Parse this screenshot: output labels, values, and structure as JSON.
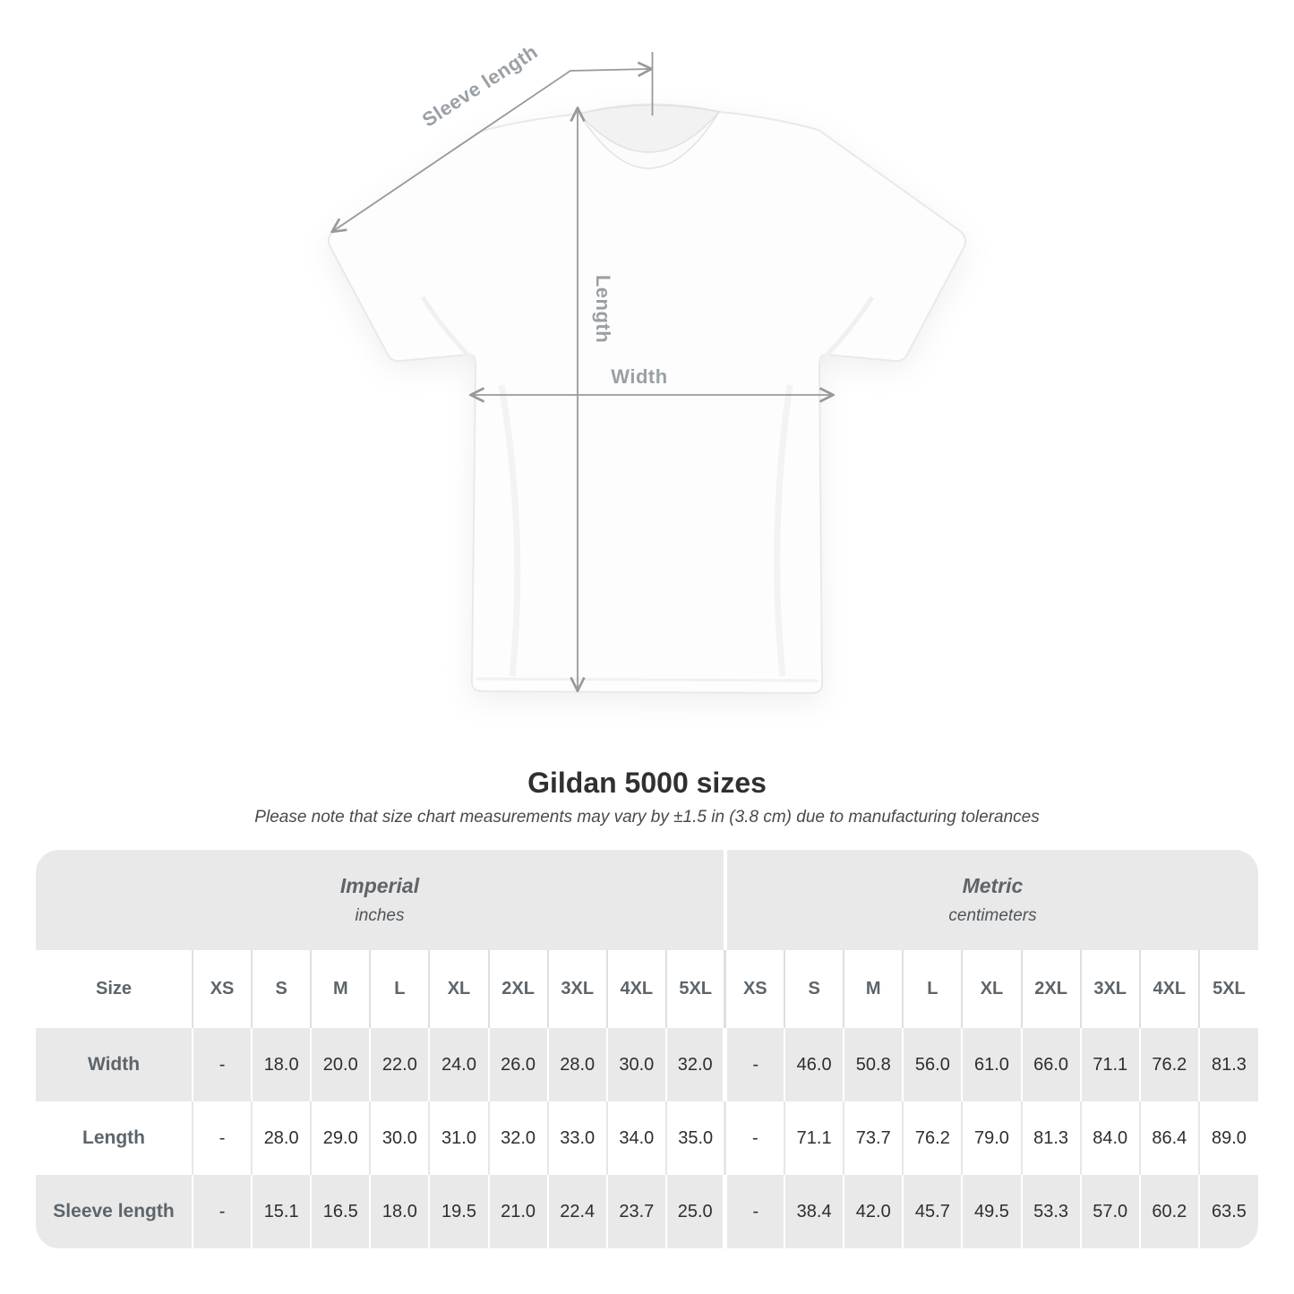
{
  "title": "Gildan 5000 sizes",
  "note": "Please note that size chart measurements may vary by ±1.5 in (3.8 cm) due to manufacturing tolerances",
  "diagram": {
    "labels": {
      "sleeve": "Sleeve length",
      "length": "Length",
      "width": "Width"
    },
    "arrow_color": "#97999b",
    "label_color": "#9aa0a5"
  },
  "table": {
    "band_color": "#e9e9e9",
    "size_header": "Size",
    "units": [
      {
        "name": "Imperial",
        "sub": "inches"
      },
      {
        "name": "Metric",
        "sub": "centimeters"
      }
    ],
    "sizes": [
      "XS",
      "S",
      "M",
      "L",
      "XL",
      "2XL",
      "3XL",
      "4XL",
      "5XL"
    ],
    "rows": [
      {
        "label": "Width",
        "imperial": [
          "-",
          "18.0",
          "20.0",
          "22.0",
          "24.0",
          "26.0",
          "28.0",
          "30.0",
          "32.0"
        ],
        "metric": [
          "-",
          "46.0",
          "50.8",
          "56.0",
          "61.0",
          "66.0",
          "71.1",
          "76.2",
          "81.3"
        ]
      },
      {
        "label": "Length",
        "imperial": [
          "-",
          "28.0",
          "29.0",
          "30.0",
          "31.0",
          "32.0",
          "33.0",
          "34.0",
          "35.0"
        ],
        "metric": [
          "-",
          "71.1",
          "73.7",
          "76.2",
          "79.0",
          "81.3",
          "84.0",
          "86.4",
          "89.0"
        ]
      },
      {
        "label": "Sleeve length",
        "imperial": [
          "-",
          "15.1",
          "16.5",
          "18.0",
          "19.5",
          "21.0",
          "22.4",
          "23.7",
          "25.0"
        ],
        "metric": [
          "-",
          "38.4",
          "42.0",
          "45.7",
          "49.5",
          "53.3",
          "57.0",
          "60.2",
          "63.5"
        ]
      }
    ]
  }
}
